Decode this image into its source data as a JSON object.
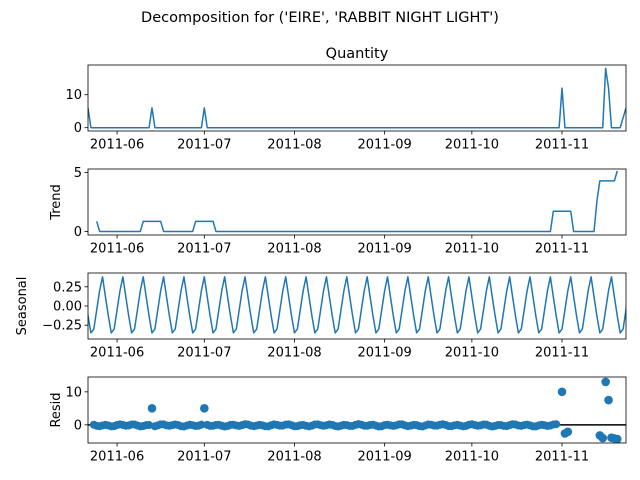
{
  "suptitle": "Decomposition for ('EIRE', 'RABBIT NIGHT LIGHT')",
  "colors": {
    "line": "#1f77b4",
    "axis": "#000000",
    "background": "#ffffff"
  },
  "chart_data": [
    {
      "type": "line",
      "title": "Quantity",
      "ylabel": "",
      "xlim": [
        "2011-05-22",
        "2011-11-23"
      ],
      "ylim": [
        -1,
        19
      ],
      "yticks": [
        0,
        10
      ],
      "xticks": [
        "2011-06",
        "2011-07",
        "2011-08",
        "2011-09",
        "2011-10",
        "2011-11"
      ],
      "points": [
        [
          "2011-05-22",
          6
        ],
        [
          "2011-05-23",
          0
        ],
        [
          "2011-06-12",
          0
        ],
        [
          "2011-06-13",
          6
        ],
        [
          "2011-06-14",
          0
        ],
        [
          "2011-06-30",
          0
        ],
        [
          "2011-07-01",
          6
        ],
        [
          "2011-07-02",
          0
        ],
        [
          "2011-10-31",
          0
        ],
        [
          "2011-11-01",
          12
        ],
        [
          "2011-11-02",
          0
        ],
        [
          "2011-11-15",
          0
        ],
        [
          "2011-11-16",
          18
        ],
        [
          "2011-11-17",
          12
        ],
        [
          "2011-11-18",
          0
        ],
        [
          "2011-11-21",
          0
        ],
        [
          "2011-11-23",
          6
        ]
      ]
    },
    {
      "type": "line",
      "title": "",
      "ylabel": "Trend",
      "xlim": [
        "2011-05-22",
        "2011-11-23"
      ],
      "ylim": [
        -0.3,
        5.3
      ],
      "yticks": [
        0,
        5
      ],
      "xticks": [
        "2011-06",
        "2011-07",
        "2011-08",
        "2011-09",
        "2011-10",
        "2011-11"
      ],
      "points": [
        [
          "2011-05-25",
          0.86
        ],
        [
          "2011-05-26",
          0
        ],
        [
          "2011-06-09",
          0
        ],
        [
          "2011-06-10",
          0.86
        ],
        [
          "2011-06-16",
          0.86
        ],
        [
          "2011-06-17",
          0
        ],
        [
          "2011-06-27",
          0
        ],
        [
          "2011-06-28",
          0.86
        ],
        [
          "2011-07-04",
          0.86
        ],
        [
          "2011-07-05",
          0
        ],
        [
          "2011-10-28",
          0
        ],
        [
          "2011-10-29",
          1.71
        ],
        [
          "2011-11-04",
          1.71
        ],
        [
          "2011-11-05",
          0
        ],
        [
          "2011-11-12",
          0
        ],
        [
          "2011-11-13",
          2.57
        ],
        [
          "2011-11-14",
          4.29
        ],
        [
          "2011-11-19",
          4.29
        ],
        [
          "2011-11-20",
          5.14
        ]
      ]
    },
    {
      "type": "line",
      "title": "",
      "ylabel": "Seasonal",
      "xlim": [
        "2011-05-22",
        "2011-11-23"
      ],
      "ylim": [
        -0.43,
        0.43
      ],
      "yticks": [
        -0.25,
        0,
        0.25
      ],
      "ytick_labels": [
        "−0.25",
        "0.00",
        "0.25"
      ],
      "xticks": [
        "2011-06",
        "2011-07",
        "2011-08",
        "2011-09",
        "2011-10",
        "2011-11"
      ],
      "period_days": 7,
      "first_peak": "2011-05-27",
      "cycle_values": [
        0.38,
        0.12,
        -0.13,
        -0.35,
        -0.3,
        -0.05,
        0.2
      ]
    },
    {
      "type": "scatter",
      "title": "",
      "ylabel": "Resid",
      "xlim": [
        "2011-05-22",
        "2011-11-23"
      ],
      "ylim": [
        -5.5,
        14.5
      ],
      "yticks": [
        0,
        10
      ],
      "xticks": [
        "2011-06",
        "2011-07",
        "2011-08",
        "2011-09",
        "2011-10",
        "2011-11"
      ],
      "baseline": 0,
      "outliers": [
        [
          "2011-06-13",
          5
        ],
        [
          "2011-07-01",
          5
        ],
        [
          "2011-11-01",
          10
        ],
        [
          "2011-11-16",
          13
        ],
        [
          "2011-11-17",
          7.5
        ],
        [
          "2011-11-14",
          -3.2
        ],
        [
          "2011-11-15",
          -4
        ],
        [
          "2011-11-18",
          -3.9
        ],
        [
          "2011-11-19",
          -4.1
        ],
        [
          "2011-11-20",
          -4.3
        ],
        [
          "2011-11-03",
          -2.1
        ],
        [
          "2011-11-02",
          -2.6
        ]
      ]
    }
  ]
}
